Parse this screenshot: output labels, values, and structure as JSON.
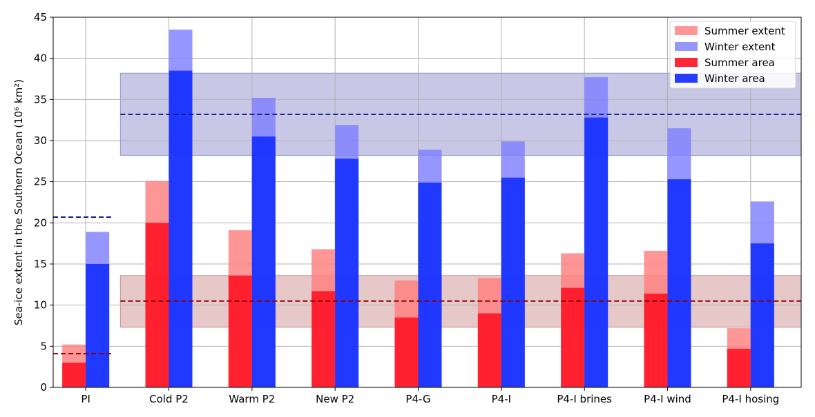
{
  "chart_data": {
    "type": "bar",
    "title": "",
    "xlabel": "",
    "ylabel": "Sea-ice extent in the Southern Ocean (10⁶ km²)",
    "ylim": [
      0,
      45
    ],
    "yticks": [
      0,
      5,
      10,
      15,
      20,
      25,
      30,
      35,
      40,
      45
    ],
    "grid": true,
    "legend_position": "top-right",
    "categories": [
      "PI",
      "Cold P2",
      "Warm P2",
      "New P2",
      "P4-G",
      "P4-I",
      "P4-I brines",
      "P4-I wind",
      "P4-I hosing"
    ],
    "series": [
      {
        "name": "Summer extent",
        "color": "#ff7f7f",
        "values": [
          5.2,
          25.1,
          19.1,
          16.8,
          13.0,
          13.3,
          16.3,
          16.6,
          7.2
        ]
      },
      {
        "name": "Winter extent",
        "color": "#7f7fff",
        "values": [
          18.9,
          43.5,
          35.2,
          31.9,
          28.9,
          29.9,
          37.7,
          31.5,
          22.6
        ]
      },
      {
        "name": "Summer area",
        "color": "#ff1a2a",
        "values": [
          3.0,
          20.0,
          13.6,
          11.7,
          8.5,
          9.0,
          12.1,
          11.4,
          4.7
        ]
      },
      {
        "name": "Winter area",
        "color": "#1a33ff",
        "values": [
          15.0,
          38.5,
          30.5,
          27.8,
          24.9,
          25.5,
          32.8,
          25.3,
          17.5
        ]
      }
    ],
    "reference_lines": {
      "pi_winter": {
        "value": 20.7,
        "color": "#0a1f8a"
      },
      "pi_summer": {
        "value": 4.1,
        "color": "#8b0000"
      },
      "obs_winter": {
        "value": 33.2,
        "range": [
          28.2,
          38.2
        ],
        "color": "#0a1f8a",
        "band_color": "#b0b0dc"
      },
      "obs_summer": {
        "value": 10.5,
        "range": [
          7.3,
          13.6
        ],
        "color": "#8b0000",
        "band_color": "#dcb0b0"
      }
    }
  }
}
